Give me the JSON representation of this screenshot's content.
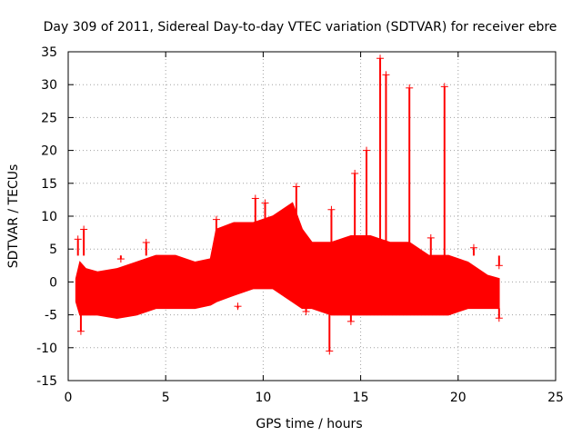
{
  "chart_data": {
    "type": "scatter",
    "title": "Day 309 of 2011, Sidereal Day-to-day VTEC variation (SDTVAR) for receiver ebre",
    "xlabel": "GPS time / hours",
    "ylabel": "SDTVAR / TECUs",
    "xlim": [
      0,
      25
    ],
    "ylim": [
      -15,
      35
    ],
    "x_ticks": [
      0,
      5,
      10,
      15,
      20,
      25
    ],
    "y_ticks": [
      -15,
      -10,
      -5,
      0,
      5,
      10,
      15,
      20,
      25,
      30,
      35
    ],
    "x_tick_labels": [
      "0",
      "5",
      "10",
      "15",
      "20",
      "25"
    ],
    "y_tick_labels": [
      "-15",
      "-10",
      "-5",
      "0",
      "5",
      "10",
      "15",
      "20",
      "25",
      "30",
      "35"
    ],
    "grid": true,
    "marker": "+",
    "color": "#ff0000",
    "series": [
      {
        "name": "SDTVAR",
        "envelope": {
          "x": [
            0.4,
            0.6,
            0.9,
            1.5,
            2.5,
            3.5,
            4.5,
            5.5,
            6.5,
            7.3,
            7.6,
            8.5,
            9.5,
            10.5,
            11.5,
            12.0,
            12.5,
            13.5,
            14.5,
            15.5,
            16.5,
            17.5,
            18.5,
            19.5,
            20.5,
            21.5,
            22.1
          ],
          "upper": [
            0.5,
            3,
            2,
            1.5,
            2,
            3,
            4,
            4,
            3,
            3.5,
            8,
            9,
            9,
            10,
            12,
            8,
            6,
            6,
            7,
            7,
            6,
            6,
            4,
            4,
            3,
            1,
            0.5
          ],
          "lower": [
            -3,
            -5,
            -5,
            -5,
            -5.5,
            -5,
            -4,
            -4,
            -4,
            -3.5,
            -3,
            -2,
            -1,
            -1,
            -3,
            -4,
            -4,
            -5,
            -5,
            -5,
            -5,
            -5,
            -5,
            -5,
            -4,
            -4,
            -4
          ]
        },
        "spikes": [
          {
            "x": 0.5,
            "y": 6.5
          },
          {
            "x": 0.65,
            "y": -7.5
          },
          {
            "x": 0.8,
            "y": 8.0
          },
          {
            "x": 2.7,
            "y": 3.5
          },
          {
            "x": 4.0,
            "y": 6.0
          },
          {
            "x": 7.6,
            "y": 9.5
          },
          {
            "x": 8.7,
            "y": -3.7
          },
          {
            "x": 9.6,
            "y": 12.7
          },
          {
            "x": 10.1,
            "y": 12.0
          },
          {
            "x": 11.7,
            "y": 14.5
          },
          {
            "x": 12.2,
            "y": -4.5
          },
          {
            "x": 13.4,
            "y": -10.5
          },
          {
            "x": 13.5,
            "y": 11.0
          },
          {
            "x": 14.5,
            "y": -6.0
          },
          {
            "x": 14.7,
            "y": 16.5
          },
          {
            "x": 15.3,
            "y": 20.0
          },
          {
            "x": 16.0,
            "y": 34.0
          },
          {
            "x": 16.3,
            "y": 31.5
          },
          {
            "x": 17.5,
            "y": 29.5
          },
          {
            "x": 18.6,
            "y": 6.7
          },
          {
            "x": 19.3,
            "y": 29.7
          },
          {
            "x": 20.8,
            "y": 5.2
          },
          {
            "x": 22.1,
            "y": -5.5
          },
          {
            "x": 22.1,
            "y": 2.5
          }
        ]
      }
    ]
  }
}
